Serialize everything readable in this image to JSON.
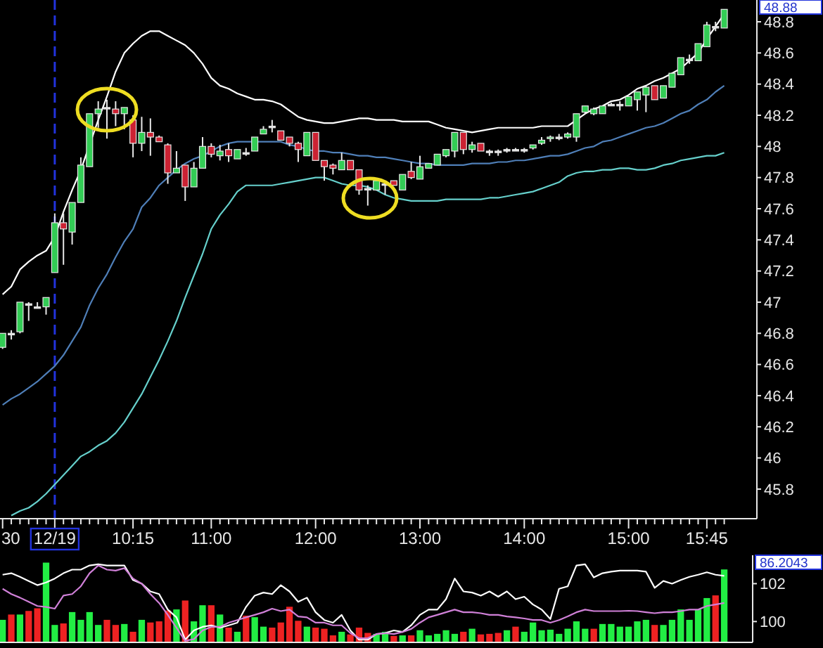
{
  "chart_data": [
    {
      "type": "candlestick",
      "categories": [
        "30",
        null,
        null,
        null,
        null,
        null,
        "12/19",
        null,
        null,
        null,
        null,
        null,
        null,
        null,
        null,
        "10:15",
        null,
        null,
        null,
        null,
        null,
        null,
        null,
        null,
        "11:00",
        null,
        null,
        null,
        null,
        null,
        null,
        null,
        null,
        null,
        null,
        null,
        "12:00",
        null,
        null,
        null,
        null,
        null,
        null,
        null,
        null,
        null,
        null,
        null,
        "13:00",
        null,
        null,
        null,
        null,
        null,
        null,
        null,
        null,
        null,
        null,
        null,
        "14:00",
        null,
        null,
        null,
        null,
        null,
        null,
        null,
        null,
        null,
        null,
        null,
        "15:00",
        null,
        null,
        null,
        null,
        null,
        null,
        null,
        null,
        "15:45",
        null,
        null
      ],
      "ohlc": [
        [
          46.71,
          46.8,
          46.7,
          46.8
        ],
        [
          46.79,
          46.82,
          46.76,
          46.8
        ],
        [
          46.81,
          47.0,
          46.8,
          47.0
        ],
        [
          46.98,
          47.0,
          46.88,
          46.99
        ],
        [
          46.96,
          47.0,
          46.96,
          46.97
        ],
        [
          46.97,
          47.03,
          46.92,
          47.03
        ],
        [
          47.19,
          47.57,
          47.19,
          47.51
        ],
        [
          47.51,
          47.57,
          47.24,
          47.47
        ],
        [
          47.45,
          47.64,
          47.37,
          47.64
        ],
        [
          47.64,
          47.93,
          47.64,
          47.88
        ],
        [
          47.87,
          48.21,
          47.87,
          48.21
        ],
        [
          48.21,
          48.29,
          48.12,
          48.24
        ],
        [
          48.24,
          48.3,
          48.05,
          48.25
        ],
        [
          48.24,
          48.29,
          48.13,
          48.21
        ],
        [
          48.21,
          48.25,
          48.11,
          48.25
        ],
        [
          48.17,
          48.2,
          47.93,
          48.02
        ],
        [
          48.02,
          48.19,
          47.97,
          48.09
        ],
        [
          48.09,
          48.18,
          47.94,
          48.06
        ],
        [
          48.06,
          48.07,
          48.03,
          48.03
        ],
        [
          48.01,
          48.02,
          47.76,
          47.83
        ],
        [
          47.83,
          47.97,
          47.83,
          47.86
        ],
        [
          47.88,
          47.88,
          47.65,
          47.74
        ],
        [
          47.74,
          47.9,
          47.74,
          47.86
        ],
        [
          47.86,
          48.06,
          47.86,
          48.0
        ],
        [
          48.0,
          48.02,
          47.93,
          47.95
        ],
        [
          47.94,
          48.01,
          47.91,
          47.97
        ],
        [
          47.98,
          48.02,
          47.9,
          47.94
        ],
        [
          47.92,
          47.98,
          47.92,
          47.98
        ],
        [
          47.95,
          47.99,
          47.94,
          47.96
        ],
        [
          47.97,
          48.06,
          47.97,
          48.06
        ],
        [
          48.08,
          48.13,
          48.08,
          48.11
        ],
        [
          48.12,
          48.17,
          48.09,
          48.13
        ],
        [
          48.1,
          48.1,
          48.04,
          48.04
        ],
        [
          48.06,
          48.06,
          48.0,
          48.02
        ],
        [
          48.02,
          48.03,
          47.9,
          47.98
        ],
        [
          47.94,
          48.09,
          47.94,
          48.09
        ],
        [
          48.09,
          48.09,
          47.91,
          47.91
        ],
        [
          47.91,
          47.91,
          47.78,
          47.87
        ],
        [
          47.88,
          47.89,
          47.82,
          47.86
        ],
        [
          47.85,
          47.96,
          47.85,
          47.91
        ],
        [
          47.91,
          47.91,
          47.85,
          47.85
        ],
        [
          47.85,
          47.85,
          47.69,
          47.72
        ],
        [
          47.72,
          47.75,
          47.62,
          47.73
        ],
        [
          47.72,
          47.78,
          47.72,
          47.78
        ],
        [
          47.75,
          47.78,
          47.69,
          47.76
        ],
        [
          47.78,
          47.78,
          47.75,
          47.75
        ],
        [
          47.72,
          47.82,
          47.72,
          47.82
        ],
        [
          47.84,
          47.9,
          47.79,
          47.8
        ],
        [
          47.79,
          47.94,
          47.79,
          47.87
        ],
        [
          47.86,
          47.89,
          47.86,
          47.89
        ],
        [
          47.88,
          47.95,
          47.88,
          47.95
        ],
        [
          47.94,
          47.98,
          47.93,
          47.98
        ],
        [
          47.97,
          48.09,
          47.93,
          48.09
        ],
        [
          48.09,
          48.09,
          47.95,
          47.98
        ],
        [
          47.98,
          48.03,
          47.96,
          48.01
        ],
        [
          48.02,
          48.02,
          47.97,
          47.97
        ],
        [
          47.96,
          47.98,
          47.94,
          47.97
        ],
        [
          47.96,
          47.98,
          47.94,
          47.97
        ],
        [
          47.97,
          47.99,
          47.96,
          47.98
        ],
        [
          47.97,
          47.99,
          47.97,
          47.98
        ],
        [
          47.97,
          47.99,
          47.96,
          47.98
        ],
        [
          47.99,
          48.01,
          47.98,
          48.01
        ],
        [
          48.02,
          48.06,
          48.01,
          48.04
        ],
        [
          48.05,
          48.07,
          48.03,
          48.06
        ],
        [
          48.05,
          48.08,
          48.04,
          48.06
        ],
        [
          48.06,
          48.09,
          48.05,
          48.08
        ],
        [
          48.06,
          48.21,
          48.03,
          48.21
        ],
        [
          48.22,
          48.26,
          48.21,
          48.26
        ],
        [
          48.21,
          48.25,
          48.2,
          48.24
        ],
        [
          48.21,
          48.26,
          48.21,
          48.26
        ],
        [
          48.26,
          48.28,
          48.26,
          48.27
        ],
        [
          48.26,
          48.29,
          48.23,
          48.27
        ],
        [
          48.26,
          48.32,
          48.26,
          48.32
        ],
        [
          48.3,
          48.35,
          48.23,
          48.35
        ],
        [
          48.33,
          48.39,
          48.22,
          48.38
        ],
        [
          48.39,
          48.39,
          48.3,
          48.3
        ],
        [
          48.31,
          48.39,
          48.31,
          48.39
        ],
        [
          48.38,
          48.47,
          48.38,
          48.47
        ],
        [
          48.46,
          48.57,
          48.46,
          48.57
        ],
        [
          48.55,
          48.59,
          48.53,
          48.56
        ],
        [
          48.55,
          48.66,
          48.55,
          48.66
        ],
        [
          48.64,
          48.8,
          48.64,
          48.78
        ],
        [
          48.76,
          48.8,
          48.74,
          48.77
        ],
        [
          48.76,
          48.88,
          48.76,
          48.88
        ]
      ],
      "colors": [
        "#33cc55",
        "#e0e0e0",
        "#33cc55",
        "#e0e0e0",
        "#e0e0e0",
        "#33cc55",
        "#33cc55",
        "#cc2233",
        "#33cc55",
        "#33cc55",
        "#33cc55",
        "#33cc55",
        "#e0e0e0",
        "#cc2233",
        "#33cc55",
        "#cc2233",
        "#33cc55",
        "#cc2233",
        "#cc2233",
        "#cc2233",
        "#33cc55",
        "#cc2233",
        "#33cc55",
        "#33cc55",
        "#cc2233",
        "#33cc55",
        "#cc2233",
        "#33cc55",
        "#e0e0e0",
        "#33cc55",
        "#33cc55",
        "#e0e0e0",
        "#cc2233",
        "#cc2233",
        "#cc2233",
        "#33cc55",
        "#cc2233",
        "#cc2233",
        "#cc2233",
        "#33cc55",
        "#cc2233",
        "#cc2233",
        "#e0e0e0",
        "#33cc55",
        "#e0e0e0",
        "#cc2233",
        "#33cc55",
        "#cc2233",
        "#33cc55",
        "#33cc55",
        "#33cc55",
        "#33cc55",
        "#33cc55",
        "#cc2233",
        "#33cc55",
        "#cc2233",
        "#e0e0e0",
        "#e0e0e0",
        "#e0e0e0",
        "#e0e0e0",
        "#e0e0e0",
        "#33cc55",
        "#33cc55",
        "#33cc55",
        "#e0e0e0",
        "#33cc55",
        "#33cc55",
        "#33cc55",
        "#33cc55",
        "#33cc55",
        "#e0e0e0",
        "#e0e0e0",
        "#33cc55",
        "#33cc55",
        "#33cc55",
        "#cc2233",
        "#33cc55",
        "#33cc55",
        "#33cc55",
        "#e0e0e0",
        "#33cc55",
        "#33cc55",
        "#e0e0e0",
        "#33cc55"
      ],
      "series": [
        {
          "type": "line",
          "color": "#ffffff",
          "values": [
            47.05,
            47.1,
            47.21,
            47.26,
            47.3,
            47.33,
            47.42,
            47.58,
            47.72,
            47.85,
            48.01,
            48.17,
            48.32,
            48.48,
            48.6,
            48.66,
            48.71,
            48.74,
            48.74,
            48.71,
            48.68,
            48.65,
            48.6,
            48.53,
            48.44,
            48.39,
            48.37,
            48.34,
            48.32,
            48.3,
            48.3,
            48.29,
            48.27,
            48.23,
            48.19,
            48.17,
            48.16,
            48.15,
            48.15,
            48.16,
            48.17,
            48.18,
            48.18,
            48.17,
            48.17,
            48.17,
            48.16,
            48.16,
            48.16,
            48.16,
            48.14,
            48.12,
            48.11,
            48.1,
            48.09,
            48.1,
            48.11,
            48.12,
            48.12,
            48.12,
            48.12,
            48.12,
            48.13,
            48.13,
            48.13,
            48.13,
            48.17,
            48.21,
            48.24,
            48.26,
            48.29,
            48.3,
            48.33,
            48.37,
            48.39,
            48.42,
            48.44,
            48.47,
            48.5,
            48.55,
            48.6,
            48.69,
            48.77,
            48.85
          ]
        },
        {
          "type": "line",
          "color": "#4f7fb8",
          "values": [
            46.34,
            46.38,
            46.41,
            46.45,
            46.49,
            46.54,
            46.59,
            46.66,
            46.75,
            46.84,
            46.98,
            47.09,
            47.18,
            47.29,
            47.39,
            47.47,
            47.61,
            47.67,
            47.75,
            47.8,
            47.85,
            47.89,
            47.92,
            47.94,
            47.97,
            48.0,
            48.02,
            48.03,
            48.03,
            48.03,
            48.03,
            48.03,
            48.03,
            48.01,
            48.0,
            47.98,
            47.97,
            47.97,
            47.96,
            47.96,
            47.95,
            47.94,
            47.94,
            47.93,
            47.93,
            47.92,
            47.91,
            47.9,
            47.89,
            47.89,
            47.88,
            47.88,
            47.88,
            47.88,
            47.89,
            47.89,
            47.89,
            47.9,
            47.9,
            47.91,
            47.91,
            47.92,
            47.93,
            47.94,
            47.94,
            47.95,
            47.97,
            47.99,
            48.0,
            48.03,
            48.04,
            48.06,
            48.08,
            48.1,
            48.12,
            48.13,
            48.15,
            48.18,
            48.21,
            48.23,
            48.27,
            48.3,
            48.35,
            48.39
          ]
        },
        {
          "type": "line",
          "color": "#66d0cc",
          "values": [
            null,
            45.63,
            45.66,
            45.68,
            45.72,
            45.77,
            45.83,
            45.89,
            45.95,
            46.01,
            46.04,
            46.08,
            46.11,
            46.16,
            46.23,
            46.32,
            46.41,
            46.52,
            46.63,
            46.75,
            46.88,
            47.03,
            47.17,
            47.31,
            47.47,
            47.56,
            47.63,
            47.71,
            47.75,
            47.75,
            47.75,
            47.75,
            47.76,
            47.77,
            47.78,
            47.79,
            47.8,
            47.8,
            47.78,
            47.76,
            47.75,
            47.75,
            47.74,
            47.72,
            47.69,
            47.67,
            47.66,
            47.65,
            47.65,
            47.65,
            47.65,
            47.66,
            47.66,
            47.66,
            47.66,
            47.66,
            47.67,
            47.67,
            47.68,
            47.69,
            47.7,
            47.71,
            47.73,
            47.75,
            47.77,
            47.81,
            47.83,
            47.84,
            47.84,
            47.85,
            47.85,
            47.86,
            47.86,
            47.85,
            47.85,
            47.86,
            47.88,
            47.89,
            47.91,
            47.92,
            47.93,
            47.94,
            47.94,
            47.96
          ]
        }
      ],
      "ylim": [
        45.61,
        48.94
      ],
      "yticks": [
        45.8,
        46,
        46.2,
        46.4,
        46.6,
        46.8,
        47,
        47.2,
        47.4,
        47.6,
        47.8,
        48,
        48.2,
        48.4,
        48.6,
        48.8
      ],
      "ref_lines": [
        {
          "axis": "x",
          "value": "12/19",
          "color": "#2233dd",
          "line_style": "dashed"
        }
      ],
      "annotations": [
        "48.88"
      ]
    },
    {
      "type": "bar",
      "categories": [
        null,
        null,
        null,
        null,
        null,
        null,
        null,
        null,
        null,
        null,
        null,
        null,
        null,
        null,
        null,
        null,
        null,
        null,
        null,
        null,
        null,
        null,
        null,
        null,
        null,
        null,
        null,
        null,
        null,
        null,
        null,
        null,
        null,
        null,
        null,
        null,
        null,
        null,
        null,
        null,
        null,
        null,
        null,
        null,
        null,
        null,
        null,
        null,
        null,
        null,
        null,
        null,
        null,
        null,
        null,
        null,
        null,
        null,
        null,
        null,
        null,
        null,
        null,
        null,
        null,
        null,
        null,
        null,
        null,
        null,
        null,
        null,
        null,
        null,
        null,
        null,
        null,
        null,
        null,
        null,
        null,
        null,
        null,
        null
      ],
      "series": [
        {
          "type": "bar",
          "colors": [
            "#22ee44",
            "#ee2222",
            "#22ee44",
            "#ee2222",
            "#ee2222",
            "#22ee44",
            "#22ee44",
            "#ee2222",
            "#22ee44",
            "#22ee44",
            "#22ee44",
            "#22ee44",
            "#ee2222",
            "#ee2222",
            "#22ee44",
            "#ee2222",
            "#22ee44",
            "#ee2222",
            "#ee2222",
            "#ee2222",
            "#22ee44",
            "#ee2222",
            "#22ee44",
            "#22ee44",
            "#ee2222",
            "#22ee44",
            "#ee2222",
            "#22ee44",
            "#ee2222",
            "#22ee44",
            "#22ee44",
            "#ee2222",
            "#ee2222",
            "#ee2222",
            "#ee2222",
            "#22ee44",
            "#ee2222",
            "#ee2222",
            "#ee2222",
            "#22ee44",
            "#ee2222",
            "#ee2222",
            "#ee2222",
            "#22ee44",
            "#22ee44",
            "#ee2222",
            "#22ee44",
            "#ee2222",
            "#22ee44",
            "#22ee44",
            "#22ee44",
            "#22ee44",
            "#22ee44",
            "#ee2222",
            "#22ee44",
            "#ee2222",
            "#ee2222",
            "#ee2222",
            "#22ee44",
            "#ee2222",
            "#22ee44",
            "#22ee44",
            "#22ee44",
            "#22ee44",
            "#22ee44",
            "#22ee44",
            "#22ee44",
            "#22ee44",
            "#ee2222",
            "#22ee44",
            "#22ee44",
            "#22ee44",
            "#22ee44",
            "#22ee44",
            "#22ee44",
            "#ee2222",
            "#22ee44",
            "#22ee44",
            "#22ee44",
            "#22ee44",
            "#22ee44",
            "#22ee44",
            "#ee2222",
            "#22ee44"
          ],
          "base": [
            98.9,
            98.9,
            98.9,
            98.9,
            98.9,
            98.9,
            98.9,
            98.9,
            98.9,
            98.9,
            98.9,
            98.9,
            98.9,
            98.9,
            98.9,
            98.9,
            98.9,
            98.9,
            98.9,
            98.9,
            98.9,
            98.9,
            98.9,
            98.9,
            98.9,
            98.9,
            98.9,
            98.9,
            98.9,
            98.9,
            98.9,
            98.9,
            98.9,
            98.9,
            98.9,
            98.9,
            98.9,
            98.9,
            98.9,
            98.9,
            98.9,
            98.9,
            98.9,
            98.9,
            98.9,
            98.9,
            98.9,
            98.9,
            98.9,
            98.9,
            98.9,
            98.9,
            98.9,
            98.9,
            98.9,
            98.9,
            98.9,
            98.9,
            98.9,
            98.9,
            98.9,
            98.9,
            98.9,
            98.9,
            98.9,
            98.9,
            98.9,
            98.9,
            98.9,
            98.9,
            98.9,
            98.9,
            98.9,
            98.9,
            98.9,
            98.9,
            98.9,
            98.9,
            98.9,
            98.9,
            98.9,
            98.9,
            98.9,
            98.9
          ],
          "values": [
            1.19,
            1.47,
            1.47,
            1.66,
            1.8,
            4.21,
            0.92,
            1.0,
            1.6,
            1.19,
            1.6,
            0.92,
            1.19,
            0.92,
            0.97,
            0.56,
            1.19,
            1.05,
            1.11,
            1.68,
            1.74,
            2.21,
            1.11,
            1.96,
            1.96,
            1.47,
            0.78,
            0.56,
            1.41,
            1.33,
            0.83,
            0.78,
            1.05,
            1.88,
            1.14,
            0.83,
            0.78,
            0.72,
            0.37,
            0.56,
            0.42,
            0.78,
            0.5,
            0.45,
            0.56,
            0.34,
            0.37,
            0.37,
            0.64,
            0.37,
            0.45,
            0.64,
            0.45,
            0.56,
            0.72,
            0.42,
            0.45,
            0.5,
            0.64,
            0.83,
            0.56,
            1.05,
            0.64,
            0.67,
            0.45,
            0.72,
            1.11,
            0.72,
            0.72,
            0.97,
            0.97,
            0.83,
            0.83,
            1.11,
            1.19,
            0.92,
            0.92,
            1.19,
            1.74,
            1.19,
            1.74,
            2.34,
            2.48,
            3.85
          ]
        },
        {
          "type": "line",
          "color": "#ffffff",
          "values": [
            102.47,
            102.55,
            102.36,
            102.14,
            101.92,
            102.06,
            102.27,
            102.55,
            102.74,
            102.74,
            102.96,
            103.02,
            102.96,
            102.96,
            102.96,
            102.19,
            102.0,
            101.59,
            101.45,
            100.63,
            100.22,
            99.04,
            99.53,
            99.72,
            99.8,
            99.67,
            99.8,
            99.94,
            100.77,
            101.37,
            101.53,
            101.45,
            101.92,
            101.59,
            101.04,
            101.26,
            100.49,
            100.08,
            99.94,
            100.35,
            99.53,
            99.04,
            99.04,
            99.34,
            99.39,
            99.53,
            99.45,
            99.8,
            100.35,
            100.63,
            100.63,
            101.18,
            102.27,
            101.59,
            101.53,
            101.37,
            101.59,
            101.31,
            101.59,
            101.18,
            101.31,
            100.9,
            100.63,
            100.13,
            101.73,
            101.86,
            102.96,
            103.02,
            102.33,
            102.55,
            102.63,
            102.69,
            102.69,
            102.69,
            102.63,
            101.78,
            102.14,
            102.0,
            102.19,
            102.36,
            102.47,
            102.6,
            102.47,
            102.41
          ]
        },
        {
          "type": "line",
          "color": "#d080d8",
          "values": [
            101.73,
            101.45,
            101.26,
            101.04,
            100.82,
            100.77,
            100.68,
            101.37,
            101.45,
            101.86,
            102.55,
            102.96,
            102.74,
            102.69,
            102.82,
            102.27,
            102.0,
            101.45,
            100.98,
            100.35,
            99.67,
            98.98,
            99.07,
            99.53,
            99.72,
            99.72,
            99.94,
            100.08,
            100.22,
            100.35,
            100.49,
            100.68,
            100.55,
            100.63,
            100.27,
            100.22,
            99.94,
            99.94,
            99.8,
            99.8,
            99.39,
            99.12,
            99.12,
            99.34,
            99.39,
            99.34,
            99.45,
            99.61,
            99.94,
            100.22,
            100.35,
            100.49,
            100.63,
            100.49,
            100.49,
            100.44,
            100.35,
            100.35,
            100.27,
            100.22,
            100.16,
            100.08,
            100.08,
            99.94,
            100.08,
            100.27,
            100.49,
            100.63,
            100.55,
            100.55,
            100.55,
            100.55,
            100.57,
            100.55,
            100.49,
            100.44,
            100.49,
            100.49,
            100.55,
            100.63,
            100.63,
            100.82,
            100.9,
            100.98
          ]
        }
      ],
      "ylim": [
        98.9,
        103.5
      ],
      "yticks": [
        100,
        102
      ],
      "tick_labels": "y",
      "annotations": [
        "86.2043"
      ]
    }
  ]
}
